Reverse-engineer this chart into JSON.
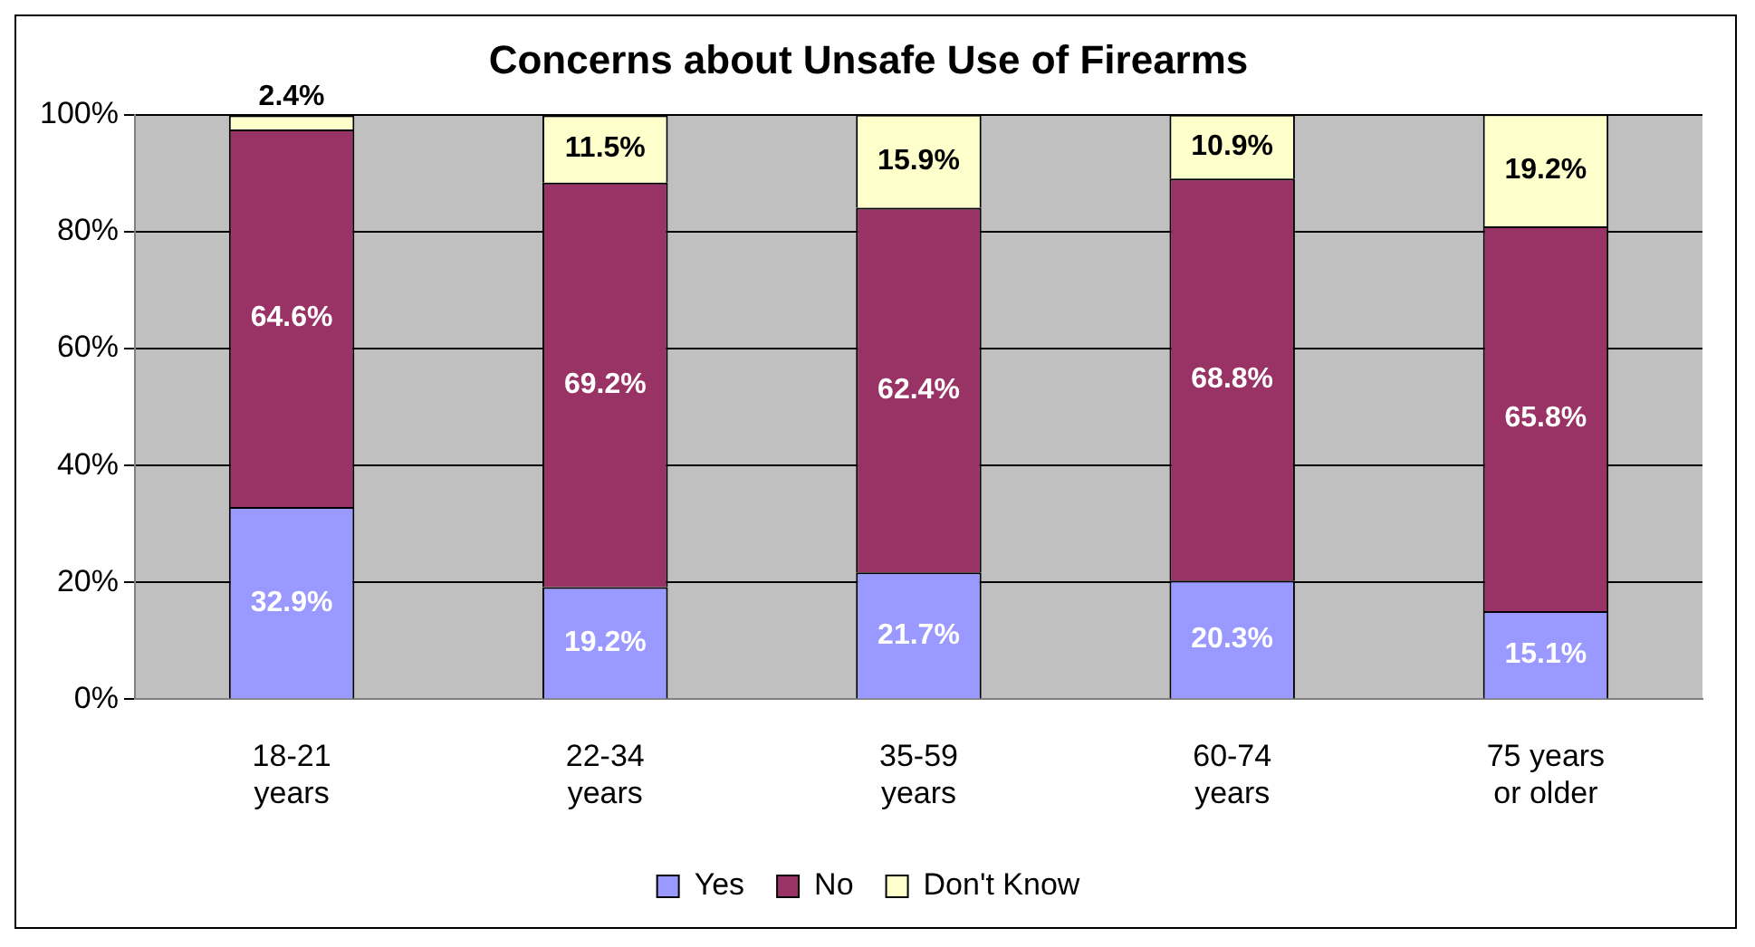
{
  "chart_data": {
    "type": "bar",
    "title": "Concerns about Unsafe Use of Firearms",
    "stacked": true,
    "categories": [
      "18-21 years",
      "22-34 years",
      "35-59 years",
      "60-74 years",
      "75 years or older"
    ],
    "series": [
      {
        "name": "Yes",
        "color": "#9999ff",
        "values": [
          32.9,
          19.2,
          21.7,
          20.3,
          15.1
        ],
        "value_labels": [
          "32.9%",
          "19.2%",
          "21.7%",
          "20.3%",
          "15.1%"
        ]
      },
      {
        "name": "No",
        "color": "#993366",
        "values": [
          64.6,
          69.2,
          62.4,
          68.8,
          65.8
        ],
        "value_labels": [
          "64.6%",
          "69.2%",
          "62.4%",
          "68.8%",
          "65.8%"
        ]
      },
      {
        "name": "Don't Know",
        "color": "#ffffcc",
        "values": [
          2.4,
          11.5,
          15.9,
          10.9,
          19.2
        ],
        "value_labels": [
          "2.4%",
          "11.5%",
          "15.9%",
          "10.9%",
          "19.2%"
        ]
      }
    ],
    "ylim": [
      0,
      100
    ],
    "yticks": [
      {
        "value": 0,
        "label": "0%"
      },
      {
        "value": 20,
        "label": "20%"
      },
      {
        "value": 40,
        "label": "40%"
      },
      {
        "value": 60,
        "label": "60%"
      },
      {
        "value": 80,
        "label": "80%"
      },
      {
        "value": 100,
        "label": "100%"
      }
    ],
    "grid": "y",
    "legend": "bottom"
  }
}
